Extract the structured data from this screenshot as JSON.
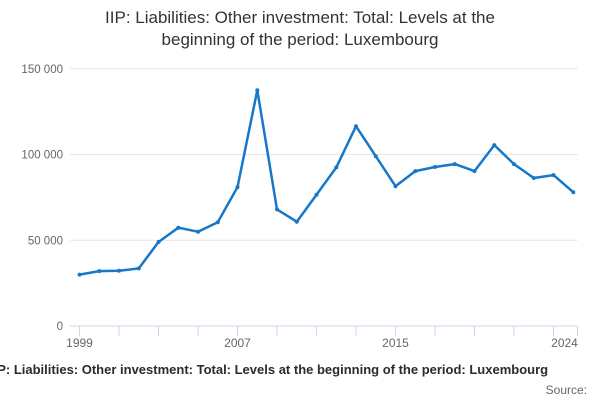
{
  "title": {
    "line1": "IIP: Liabilities: Other investment: Total: Levels at the",
    "line2": "beginning of the period: Luxembourg",
    "full": "IIP: Liabilities: Other investment: Total: Levels at the beginning of the period: Luxembourg"
  },
  "footer": {
    "series_label": "IIP: Liabilities: Other investment: Total: Levels at the beginning of the period: Luxembourg",
    "source_label": "Source:"
  },
  "colors": {
    "line": "#1777c8",
    "axis": "#ccd6eb",
    "grid": "#e6e6e6",
    "tick_label": "#666666",
    "title_text": "#333333"
  },
  "chart_data": {
    "type": "line",
    "title": "IIP: Liabilities: Other investment: Total: Levels at the beginning of the period: Luxembourg",
    "xlabel": "",
    "ylabel": "",
    "ylim": [
      0,
      150000
    ],
    "y_tick_interval": 50000,
    "y_ticks": [
      {
        "value": 0,
        "label": "0"
      },
      {
        "value": 50000,
        "label": "50 000"
      },
      {
        "value": 100000,
        "label": "100 000"
      },
      {
        "value": 150000,
        "label": "150 000"
      }
    ],
    "x_minor_tick_years": [
      1999,
      2001,
      2003,
      2005,
      2007,
      2009,
      2011,
      2013,
      2015,
      2017,
      2019,
      2021,
      2023
    ],
    "x_tick_labels": [
      "1999",
      "2007",
      "2015",
      "2024"
    ],
    "x_tick_label_years": [
      1999,
      2007,
      2015,
      2024
    ],
    "grid": "horizontal-only",
    "legend": "none",
    "x": [
      1999,
      2000,
      2001,
      2002,
      2003,
      2004,
      2005,
      2006,
      2007,
      2008,
      2009,
      2010,
      2011,
      2012,
      2013,
      2014,
      2015,
      2016,
      2017,
      2018,
      2019,
      2020,
      2021,
      2022,
      2023,
      2024
    ],
    "values": [
      30000,
      32000,
      32200,
      33600,
      49000,
      57300,
      55000,
      60500,
      81000,
      137500,
      68000,
      60800,
      76500,
      92500,
      116500,
      99000,
      81500,
      90300,
      92700,
      94400,
      90300,
      105500,
      94400,
      86300,
      88000,
      78000
    ]
  }
}
